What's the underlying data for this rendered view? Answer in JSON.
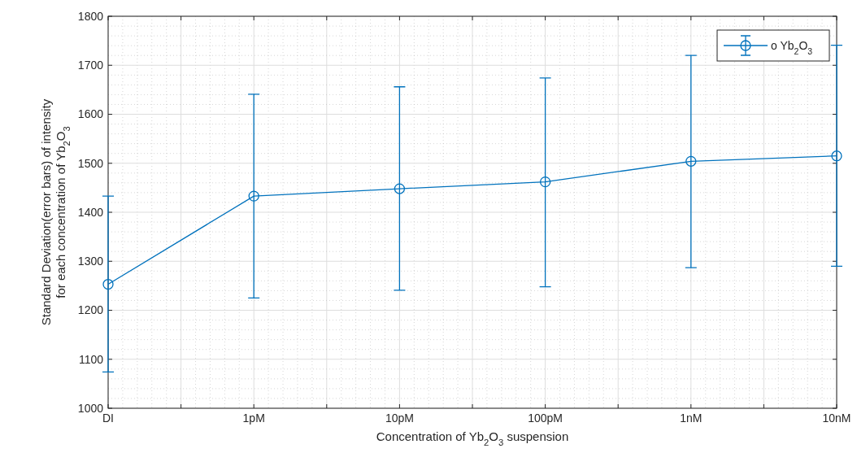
{
  "chart_data": {
    "type": "line",
    "xlabel": "Concentration of Yb$_{2}$O$_{3}$ suspension",
    "ylabel": "Standard Deviation(error bars) of intensity\nfor each concentration of Yb$_{2}$O$_{3}$",
    "categories": [
      "DI",
      "1pM",
      "10pM",
      "100pM",
      "1nM",
      "10nM"
    ],
    "series": [
      {
        "name": "o Yb$_{2}$O$_{3}$",
        "color": "#0072bd",
        "values": [
          1253,
          1433,
          1448,
          1462,
          1504,
          1515
        ],
        "errors": [
          [
            1074,
            1433
          ],
          [
            1225,
            1641
          ],
          [
            1241,
            1656
          ],
          [
            1248,
            1674
          ],
          [
            1287,
            1720
          ],
          [
            1290,
            1741
          ]
        ]
      }
    ],
    "ylim": [
      1000,
      1800
    ],
    "yticks": [
      1000,
      1100,
      1200,
      1300,
      1400,
      1500,
      1600,
      1700,
      1800
    ],
    "grid": true,
    "legend": "top right",
    "marker": "circle",
    "line_style": "solid"
  }
}
